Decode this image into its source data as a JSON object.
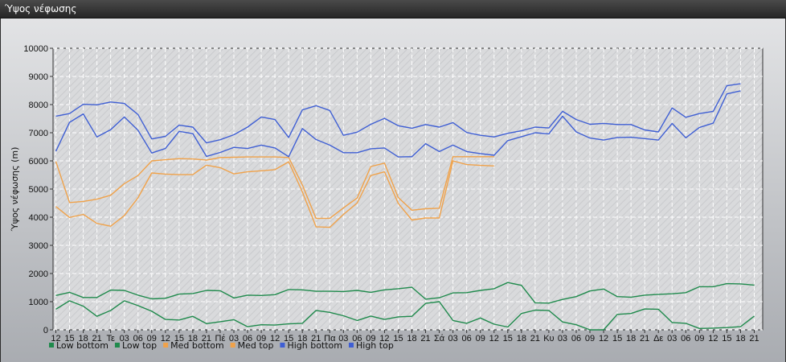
{
  "window": {
    "title": "Ύψος νέφωσης"
  },
  "chart_data": {
    "type": "line",
    "title": "",
    "ylabel": "Ύψος νέφωσης (m)",
    "ylim": [
      0,
      10000
    ],
    "yticks": [
      0,
      1000,
      2000,
      3000,
      4000,
      5000,
      6000,
      7000,
      8000,
      9000,
      10000
    ],
    "grid": true,
    "legend_position": "bottom-left",
    "x": [
      "12",
      "15",
      "18",
      "21",
      "Τε",
      "03",
      "06",
      "09",
      "12",
      "15",
      "18",
      "21",
      "Πέ",
      "03",
      "06",
      "09",
      "12",
      "15",
      "18",
      "21",
      "Πα",
      "03",
      "06",
      "09",
      "12",
      "15",
      "18",
      "21",
      "Σά",
      "03",
      "06",
      "09",
      "12",
      "15",
      "18",
      "21",
      "Κυ",
      "03",
      "06",
      "09",
      "12",
      "15",
      "18",
      "21",
      "Δε",
      "03",
      "06",
      "09",
      "12",
      "15",
      "18",
      "21"
    ],
    "series": [
      {
        "name": "Low bottom",
        "color": "#1f8a4c",
        "values": [
          1220,
          1330,
          1150,
          1150,
          1410,
          1400,
          1230,
          1100,
          1120,
          1270,
          1290,
          1400,
          1390,
          1130,
          1230,
          1220,
          1250,
          1430,
          1420,
          1370,
          1370,
          1360,
          1400,
          1330,
          1420,
          1460,
          1510,
          1090,
          1140,
          1310,
          1320,
          1400,
          1460,
          1680,
          1580,
          960,
          950,
          1080,
          1180,
          1380,
          1450,
          1180,
          1160,
          1230,
          1260,
          1280,
          1320,
          1530,
          1530,
          1640,
          1630,
          1590
        ]
      },
      {
        "name": "Low top",
        "color": "#1f8a4c",
        "values": [
          730,
          1030,
          840,
          480,
          690,
          1030,
          860,
          660,
          370,
          350,
          480,
          220,
          290,
          360,
          110,
          180,
          170,
          210,
          230,
          690,
          620,
          500,
          330,
          490,
          370,
          460,
          480,
          940,
          1000,
          330,
          230,
          420,
          200,
          100,
          580,
          700,
          690,
          280,
          180,
          0,
          0,
          550,
          580,
          740,
          730,
          260,
          230,
          50,
          60,
          80,
          110,
          490
        ]
      },
      {
        "name": "Med bottom",
        "color": "#f0a24a",
        "values": [
          4380,
          3990,
          4100,
          3780,
          3680,
          4060,
          4690,
          5570,
          5530,
          5510,
          5510,
          5850,
          5760,
          5540,
          5610,
          5650,
          5690,
          5970,
          4900,
          3660,
          3640,
          4100,
          4500,
          5480,
          5610,
          4490,
          3900,
          3970,
          3970,
          6000,
          5870,
          5840,
          5820,
          null,
          null,
          null,
          null,
          null,
          null,
          null,
          null,
          null,
          null,
          null,
          null,
          null,
          null,
          null,
          null,
          null,
          null,
          null
        ]
      },
      {
        "name": "Med top",
        "color": "#f0a24a",
        "values": [
          5980,
          4520,
          4560,
          4640,
          4780,
          5190,
          5480,
          6000,
          6040,
          6080,
          6070,
          6030,
          6120,
          6130,
          6140,
          6140,
          6140,
          6120,
          5150,
          3960,
          3960,
          4330,
          4680,
          5800,
          5920,
          4700,
          4250,
          4300,
          4320,
          6150,
          6150,
          6150,
          6150,
          null,
          null,
          null,
          null,
          null,
          null,
          null,
          null,
          null,
          null,
          null,
          null,
          null,
          null,
          null,
          null,
          null,
          null,
          null
        ]
      },
      {
        "name": "High bottom",
        "color": "#3f5fd4",
        "values": [
          6340,
          7370,
          7670,
          6850,
          7110,
          7560,
          7090,
          6280,
          6440,
          7050,
          6970,
          6160,
          6300,
          6480,
          6440,
          6560,
          6460,
          6150,
          7150,
          6760,
          6560,
          6290,
          6290,
          6430,
          6460,
          6140,
          6150,
          6610,
          6330,
          6560,
          6330,
          6260,
          6200,
          6720,
          6860,
          7000,
          6960,
          7590,
          7030,
          6810,
          6740,
          6830,
          6840,
          6790,
          6740,
          7330,
          6820,
          7190,
          7340,
          8380,
          8490,
          null
        ]
      },
      {
        "name": "High top",
        "color": "#3f5fd4",
        "values": [
          7590,
          7680,
          8010,
          7990,
          8090,
          8040,
          7650,
          6780,
          6870,
          7270,
          7200,
          6640,
          6750,
          6930,
          7200,
          7560,
          7470,
          6830,
          7810,
          7960,
          7790,
          6910,
          7020,
          7300,
          7510,
          7250,
          7160,
          7290,
          7200,
          7360,
          7010,
          6910,
          6850,
          6980,
          7070,
          7200,
          7170,
          7760,
          7470,
          7300,
          7330,
          7290,
          7290,
          7100,
          7030,
          7880,
          7550,
          7680,
          7760,
          8670,
          8740,
          null
        ]
      }
    ]
  }
}
